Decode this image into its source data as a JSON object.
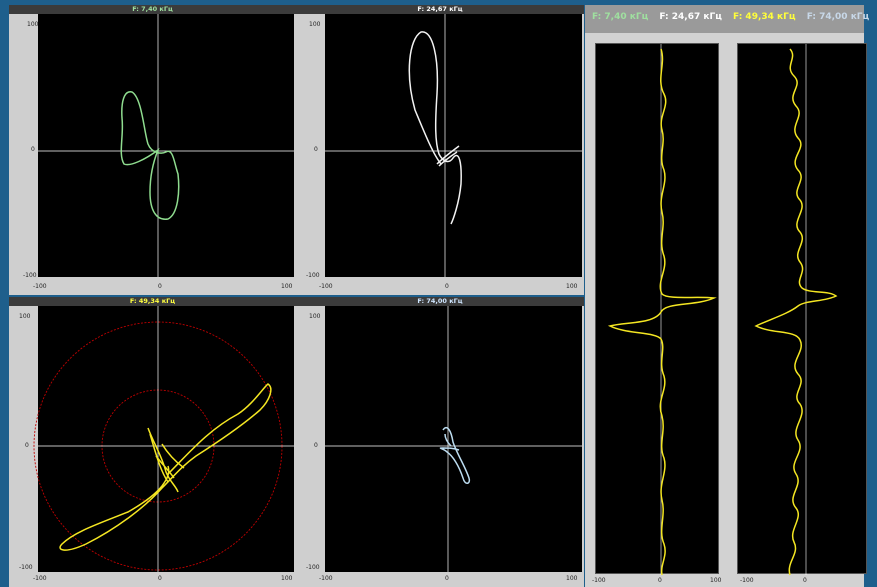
{
  "polar_plots": [
    {
      "title": "F: 7,40 кГц",
      "title_color": "#9fe09f",
      "trace_color": "#8fdc8f",
      "ticks": {
        "y_top": "100",
        "y_mid": "0",
        "y_bot": "-100",
        "x_left": "-100",
        "x_mid": "0",
        "x_right": "100"
      }
    },
    {
      "title": "F: 24,67 кГц",
      "title_color": "#ffffff",
      "trace_color": "#f2f2f2",
      "ticks": {
        "y_top": "100",
        "y_mid": "0",
        "y_bot": "-100",
        "x_left": "-100",
        "x_mid": "0",
        "x_right": "100"
      }
    },
    {
      "title": "F: 49,34 кГц",
      "title_color": "#ffff40",
      "trace_color": "#f4e622",
      "ticks": {
        "y_top": "100",
        "y_mid": "0",
        "y_bot": "-100",
        "x_left": "-100",
        "x_mid": "0",
        "x_right": "100"
      }
    },
    {
      "title": "F: 74,00 кГц",
      "title_color": "#cfe6ff",
      "trace_color": "#bcdcf0",
      "ticks": {
        "y_top": "100",
        "y_mid": "0",
        "y_bot": "-100",
        "x_left": "-100",
        "x_mid": "0",
        "x_right": "100"
      }
    }
  ],
  "legend": [
    {
      "text": "F: 7,40 кГц",
      "color": "#9fe09f"
    },
    {
      "text": "F: 24,67 кГц",
      "color": "#ffffff"
    },
    {
      "text": "F: 49,34 кГц",
      "color": "#ffff3a"
    },
    {
      "text": "F: 74,00 кГц",
      "color": "#c8d8e8"
    }
  ],
  "strip_ticks": {
    "left": "-100",
    "mid": "0",
    "right": "100"
  },
  "colors": {
    "grid": "#ffffff",
    "ring": "#c00000",
    "strip_trace": "#f4e622"
  }
}
